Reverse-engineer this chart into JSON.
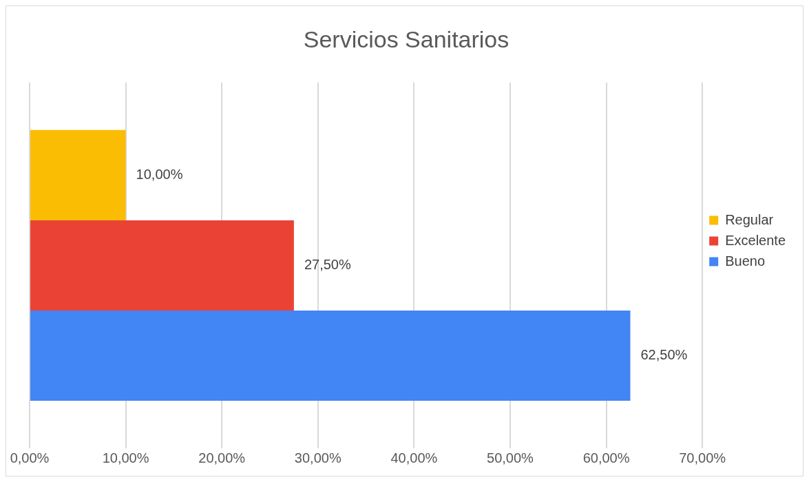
{
  "chart_data": {
    "type": "bar",
    "orientation": "horizontal",
    "title": "Servicios Sanitarios",
    "categories": [
      null
    ],
    "series": [
      {
        "name": "Regular",
        "color": "#fbbc04",
        "values": [
          10
        ],
        "value_labels": [
          "10,00%"
        ]
      },
      {
        "name": "Excelente",
        "color": "#ea4335",
        "values": [
          27.5
        ],
        "value_labels": [
          "27,50%"
        ]
      },
      {
        "name": "Bueno",
        "color": "#4285f4",
        "values": [
          62.5
        ],
        "value_labels": [
          "62,50%"
        ]
      }
    ],
    "xlim": [
      0,
      70
    ],
    "xticks": [
      {
        "value": 0,
        "label": "0,00%"
      },
      {
        "value": 10,
        "label": "10,00%"
      },
      {
        "value": 20,
        "label": "20,00%"
      },
      {
        "value": 30,
        "label": "30,00%"
      },
      {
        "value": 40,
        "label": "40,00%"
      },
      {
        "value": 50,
        "label": "50,00%"
      },
      {
        "value": 60,
        "label": "60,00%"
      },
      {
        "value": 70,
        "label": "70,00%"
      }
    ],
    "grid": "x",
    "legend": "right"
  }
}
